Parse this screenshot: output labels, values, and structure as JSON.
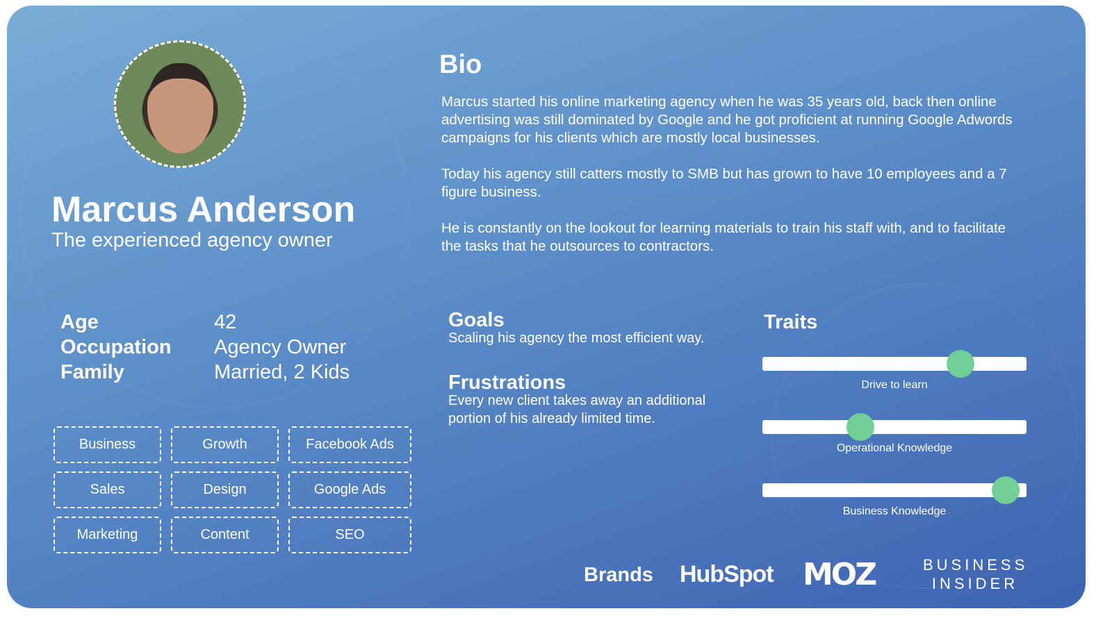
{
  "persona": {
    "name": "Marcus Anderson",
    "tagline": "The experienced agency owner"
  },
  "bio": {
    "heading": "Bio",
    "paragraphs": [
      "Marcus started his online marketing agency when he was 35 years old, back then online advertising was still dominated by Google and he got proficient at running Google Adwords campaigns for his clients which are mostly local businesses.",
      "Today his agency still catters mostly to SMB but has grown to have 10 employees and a 7 figure business.",
      "He is constantly on the lookout for learning materials to train his staff with, and to facilitate the tasks that he outsources to contractors."
    ]
  },
  "facts": [
    {
      "label": "Age",
      "value": "42"
    },
    {
      "label": "Occupation",
      "value": "Agency Owner"
    },
    {
      "label": "Family",
      "value": "Married, 2 Kids"
    }
  ],
  "tags": [
    "Business",
    "Growth",
    "Facebook Ads",
    "Sales",
    "Design",
    "Google Ads",
    "Marketing",
    "Content",
    "SEO"
  ],
  "goals": {
    "heading": "Goals",
    "text": "Scaling his agency the most efficient way."
  },
  "frustrations": {
    "heading": "Frustrations",
    "text": "Every new client takes away an additional portion of his already limited time."
  },
  "traits": {
    "heading": "Traits",
    "items": [
      {
        "label": "Drive to learn",
        "level": 0.75
      },
      {
        "label": "Operational Knowledge",
        "level": 0.37
      },
      {
        "label": "Business Knowledge",
        "level": 0.92
      }
    ]
  },
  "brands": {
    "heading": "Brands",
    "logos": [
      "HubSpot",
      "MOZ",
      "BUSINESS INSIDER"
    ]
  },
  "colors": {
    "accent": "#6fcf97",
    "hubspot": "#f27c3a",
    "gradient_start": "#79acd6",
    "gradient_end": "#3e63b1"
  }
}
